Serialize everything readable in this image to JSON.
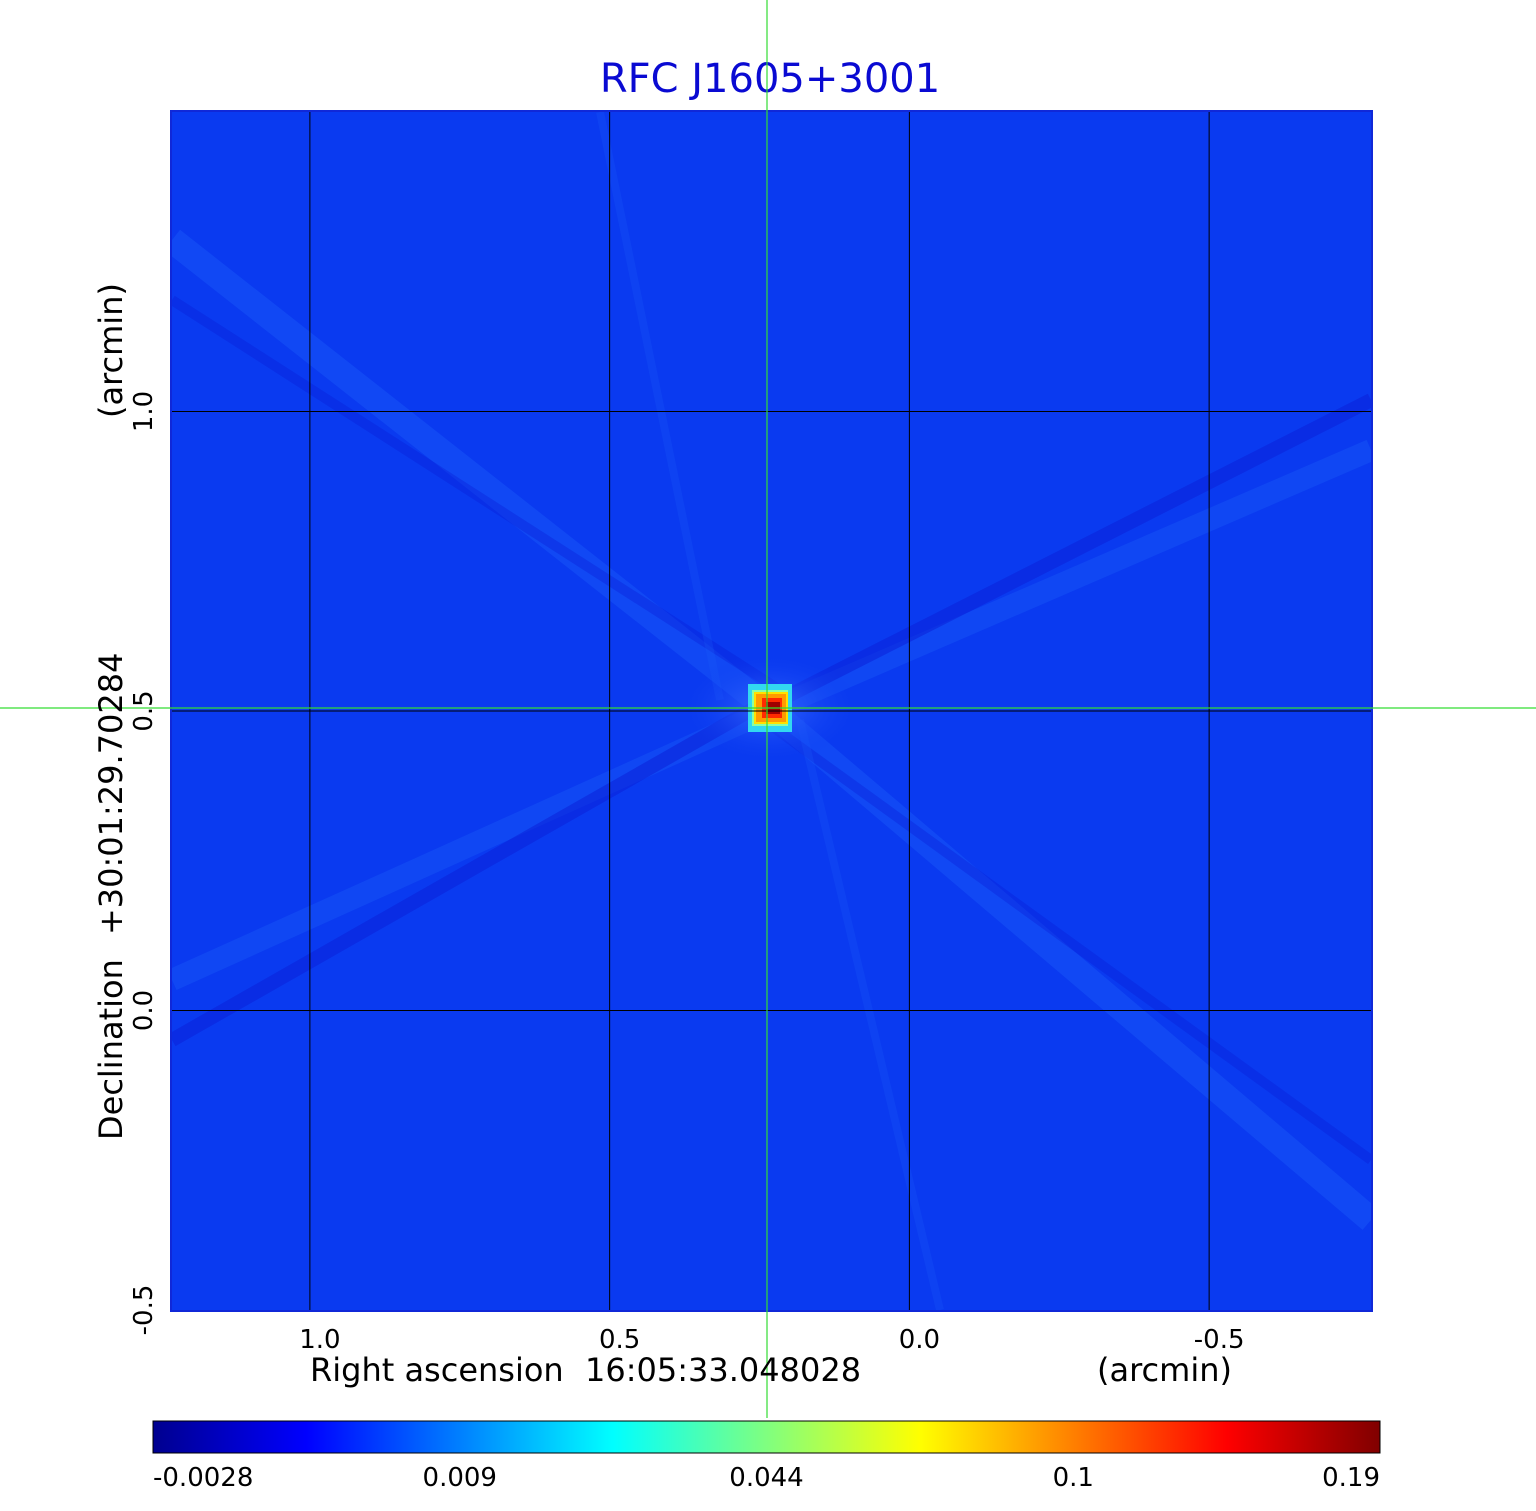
{
  "title": "RFC J1605+3001",
  "colors": {
    "title": "#0a0ad2",
    "background_field": "#0a3af0",
    "grid": "#000000",
    "crosshair": "#33dd33"
  },
  "colormap": "jet",
  "chart_data": {
    "type": "heatmap",
    "title": "RFC J1605+3001",
    "x_axis": {
      "label": "Right ascension",
      "reference": "16:05:33.048028",
      "unit": "(arcmin)",
      "ticks": [
        "1.0",
        "0.5",
        "0.0",
        "-0.5"
      ],
      "tick_values": [
        1.0,
        0.5,
        0.0,
        -0.5
      ],
      "range": [
        1.23,
        -0.77
      ]
    },
    "y_axis": {
      "label": "Declination",
      "reference": "+30:01:29.70284",
      "unit": "(arcmin)",
      "ticks": [
        "1.0",
        "0.5",
        "0.0",
        "-0.5"
      ],
      "tick_values": [
        1.0,
        0.5,
        0.0,
        -0.5
      ],
      "range": [
        -0.5,
        1.5
      ]
    },
    "grid": true,
    "source_peak": {
      "x": 0.24,
      "y": 0.5
    },
    "crosshair": {
      "x": 0.235,
      "y": 0.5
    },
    "colorbar": {
      "ticks": [
        "-0.0028",
        "0.009",
        "0.044",
        "0.1",
        "0.19"
      ],
      "tick_values": [
        -0.0028,
        0.009,
        0.044,
        0.1,
        0.19
      ],
      "range": [
        -0.0028,
        0.19
      ]
    }
  }
}
